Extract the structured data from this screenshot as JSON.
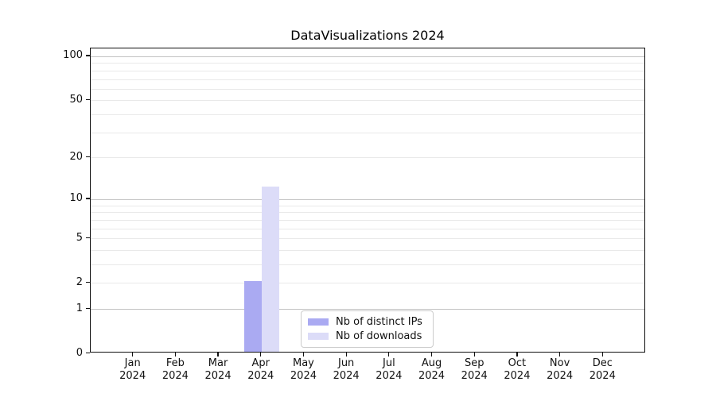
{
  "title": "DataVisualizations 2024",
  "chart_data": {
    "type": "bar",
    "title": "DataVisualizations 2024",
    "categories": [
      "Jan 2024",
      "Feb 2024",
      "Mar 2024",
      "Apr 2024",
      "May 2024",
      "Jun 2024",
      "Jul 2024",
      "Aug 2024",
      "Sep 2024",
      "Oct 2024",
      "Nov 2024",
      "Dec 2024"
    ],
    "series": [
      {
        "name": "Nb of distinct IPs",
        "color": "#aaaaf2",
        "values": [
          0,
          0,
          0,
          2,
          0,
          0,
          0,
          0,
          0,
          0,
          0,
          0
        ]
      },
      {
        "name": "Nb of downloads",
        "color": "#dcdcf8",
        "values": [
          0,
          0,
          0,
          12,
          0,
          0,
          0,
          0,
          0,
          0,
          0,
          0
        ]
      }
    ],
    "xlabel": "",
    "ylabel": "",
    "yscale": "log1p",
    "ylim": [
      0,
      113
    ],
    "yticks": [
      {
        "value": 0,
        "label": "0"
      },
      {
        "value": 1,
        "label": "1"
      },
      {
        "value": 2,
        "label": "2"
      },
      {
        "value": 5,
        "label": "5"
      },
      {
        "value": 10,
        "label": "10"
      },
      {
        "value": 20,
        "label": "20"
      },
      {
        "value": 50,
        "label": "50"
      },
      {
        "value": 100,
        "label": "100"
      }
    ],
    "major_gridline_values": [
      1,
      10,
      100
    ],
    "minor_gridline_values": [
      2,
      3,
      4,
      5,
      6,
      7,
      8,
      9,
      20,
      30,
      40,
      50,
      60,
      70,
      80,
      90
    ],
    "grid": "horizontal",
    "legend_position": "lower center"
  },
  "colors": {
    "background": "#ffffff",
    "spine": "#0d0d0d",
    "tick_text": "#111111",
    "major_grid": "#c2c2c2",
    "minor_grid": "#e9e9e9",
    "legend_border": "#cccccc",
    "series_1": "#aaaaf2",
    "series_2": "#dcdcf8"
  }
}
